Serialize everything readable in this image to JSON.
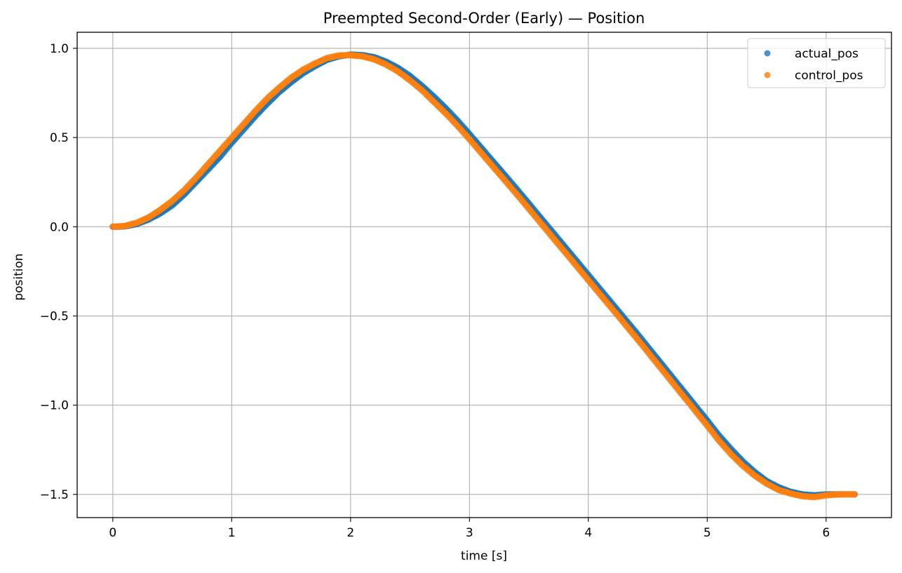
{
  "chart_data": {
    "type": "scatter",
    "title": "Preempted Second-Order (Early) — Position",
    "xlabel": "time [s]",
    "ylabel": "position",
    "xlim": [
      -0.3,
      6.55
    ],
    "ylim": [
      -1.63,
      1.09
    ],
    "x_ticks": [
      0,
      1,
      2,
      3,
      4,
      5,
      6
    ],
    "y_ticks": [
      1.0,
      0.5,
      0.0,
      -0.5,
      -1.0,
      -1.5
    ],
    "y_tick_labels": [
      "1.0",
      "0.5",
      "0.0",
      "−0.5",
      "−1.0",
      "−1.5"
    ],
    "grid": true,
    "legend_position": "top-right",
    "series": [
      {
        "name": "actual_pos",
        "color": "#1f77b4",
        "points": [
          [
            0.0,
            0.0
          ],
          [
            0.1,
            0.002
          ],
          [
            0.2,
            0.015
          ],
          [
            0.3,
            0.04
          ],
          [
            0.4,
            0.075
          ],
          [
            0.5,
            0.12
          ],
          [
            0.6,
            0.18
          ],
          [
            0.7,
            0.25
          ],
          [
            0.8,
            0.32
          ],
          [
            0.9,
            0.39
          ],
          [
            1.0,
            0.47
          ],
          [
            1.1,
            0.545
          ],
          [
            1.2,
            0.62
          ],
          [
            1.3,
            0.69
          ],
          [
            1.4,
            0.755
          ],
          [
            1.5,
            0.81
          ],
          [
            1.6,
            0.86
          ],
          [
            1.7,
            0.9
          ],
          [
            1.8,
            0.935
          ],
          [
            1.9,
            0.955
          ],
          [
            2.0,
            0.965
          ],
          [
            2.1,
            0.962
          ],
          [
            2.2,
            0.95
          ],
          [
            2.3,
            0.925
          ],
          [
            2.4,
            0.89
          ],
          [
            2.5,
            0.845
          ],
          [
            2.6,
            0.79
          ],
          [
            2.7,
            0.73
          ],
          [
            2.8,
            0.665
          ],
          [
            2.9,
            0.595
          ],
          [
            3.0,
            0.52
          ],
          [
            3.2,
            0.365
          ],
          [
            3.4,
            0.21
          ],
          [
            3.6,
            0.05
          ],
          [
            3.8,
            -0.11
          ],
          [
            4.0,
            -0.27
          ],
          [
            4.2,
            -0.43
          ],
          [
            4.4,
            -0.59
          ],
          [
            4.6,
            -0.755
          ],
          [
            4.8,
            -0.92
          ],
          [
            5.0,
            -1.085
          ],
          [
            5.1,
            -1.17
          ],
          [
            5.2,
            -1.245
          ],
          [
            5.3,
            -1.315
          ],
          [
            5.4,
            -1.375
          ],
          [
            5.5,
            -1.425
          ],
          [
            5.6,
            -1.46
          ],
          [
            5.7,
            -1.485
          ],
          [
            5.8,
            -1.5
          ],
          [
            5.9,
            -1.505
          ],
          [
            6.0,
            -1.5
          ],
          [
            6.1,
            -1.5
          ],
          [
            6.2,
            -1.5
          ],
          [
            6.24,
            -1.5
          ]
        ]
      },
      {
        "name": "control_pos",
        "color": "#ff7f0e",
        "points": [
          [
            0.0,
            0.0
          ],
          [
            0.1,
            0.004
          ],
          [
            0.2,
            0.022
          ],
          [
            0.3,
            0.052
          ],
          [
            0.4,
            0.095
          ],
          [
            0.5,
            0.145
          ],
          [
            0.6,
            0.205
          ],
          [
            0.7,
            0.275
          ],
          [
            0.8,
            0.35
          ],
          [
            0.9,
            0.425
          ],
          [
            1.0,
            0.5
          ],
          [
            1.1,
            0.575
          ],
          [
            1.2,
            0.65
          ],
          [
            1.3,
            0.72
          ],
          [
            1.4,
            0.78
          ],
          [
            1.5,
            0.835
          ],
          [
            1.6,
            0.88
          ],
          [
            1.7,
            0.915
          ],
          [
            1.8,
            0.945
          ],
          [
            1.9,
            0.96
          ],
          [
            2.0,
            0.962
          ],
          [
            2.1,
            0.955
          ],
          [
            2.2,
            0.938
          ],
          [
            2.3,
            0.908
          ],
          [
            2.4,
            0.87
          ],
          [
            2.5,
            0.82
          ],
          [
            2.6,
            0.765
          ],
          [
            2.7,
            0.7
          ],
          [
            2.8,
            0.635
          ],
          [
            2.9,
            0.565
          ],
          [
            3.0,
            0.49
          ],
          [
            3.2,
            0.335
          ],
          [
            3.4,
            0.18
          ],
          [
            3.6,
            0.02
          ],
          [
            3.8,
            -0.14
          ],
          [
            4.0,
            -0.3
          ],
          [
            4.2,
            -0.46
          ],
          [
            4.4,
            -0.62
          ],
          [
            4.6,
            -0.785
          ],
          [
            4.8,
            -0.95
          ],
          [
            5.0,
            -1.115
          ],
          [
            5.1,
            -1.2
          ],
          [
            5.2,
            -1.275
          ],
          [
            5.3,
            -1.34
          ],
          [
            5.4,
            -1.395
          ],
          [
            5.5,
            -1.44
          ],
          [
            5.6,
            -1.475
          ],
          [
            5.7,
            -1.495
          ],
          [
            5.8,
            -1.51
          ],
          [
            5.9,
            -1.515
          ],
          [
            6.0,
            -1.505
          ],
          [
            6.1,
            -1.5
          ],
          [
            6.2,
            -1.5
          ],
          [
            6.24,
            -1.5
          ]
        ]
      }
    ]
  }
}
